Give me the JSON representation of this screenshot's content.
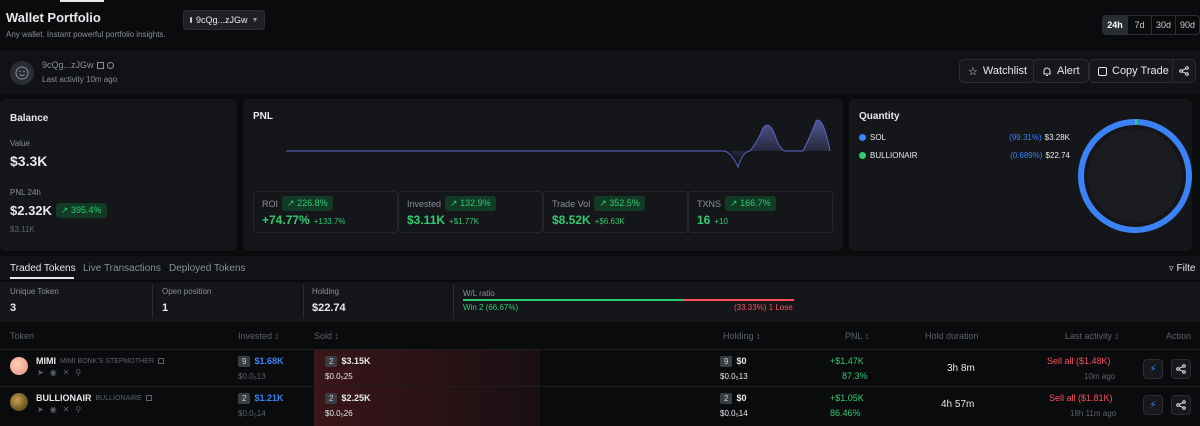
{
  "header": {
    "title": "Wallet Portfolio",
    "subtitle": "Any wallet. Instant powerful portfolio insights.",
    "wallet_select": "9cQg...zJGw",
    "timeframes": [
      "24h",
      "7d",
      "30d",
      "90d"
    ],
    "active_timeframe": "24h"
  },
  "profile": {
    "address": "9cQg...zJGw",
    "last_activity": "Last activity 10m ago",
    "buttons": {
      "watchlist": "Watchlist",
      "alert": "Alert",
      "copy_trade": "Copy Trade"
    }
  },
  "balance": {
    "title": "Balance",
    "value_label": "Value",
    "value": "$3.3K",
    "pnl_label": "PNL 24h",
    "pnl_value": "$2.32K",
    "pnl_pct": "395.4%",
    "pnl_sub": "$3.11K"
  },
  "pnl": {
    "title": "PNL",
    "metrics": [
      {
        "label": "ROI",
        "badge": "226.8%",
        "value": "+74.77%",
        "sub": "+133.7%"
      },
      {
        "label": "Invested",
        "badge": "132.9%",
        "value": "$3.11K",
        "sub": "+$1.77K"
      },
      {
        "label": "Trade Vol",
        "badge": "352.5%",
        "value": "$8.52K",
        "sub": "+$6.63K"
      },
      {
        "label": "TXNS",
        "badge": "166.7%",
        "value": "16",
        "sub": "+10"
      }
    ]
  },
  "quantity": {
    "title": "Quantity",
    "items": [
      {
        "name": "SOL",
        "pct": "(99.31%)",
        "value": "$3.28K",
        "color": "#3b82f6"
      },
      {
        "name": "BULLIONAIR",
        "pct": "(0.689%)",
        "value": "$22.74",
        "color": "#2ecc71"
      }
    ],
    "donut_fractions": [
      0.9931,
      0.00689
    ]
  },
  "tabs": {
    "items": [
      "Traded Tokens",
      "Live Transactions",
      "Deployed Tokens"
    ],
    "filter": "Filte"
  },
  "summary": {
    "unique_label": "Unique Token",
    "unique_value": "3",
    "open_label": "Open position",
    "open_value": "1",
    "holding_label": "Holding",
    "holding_value": "$22.74",
    "wl_label": "W/L ratio",
    "win": "Win 2 (66.67%)",
    "lose": "(33.33%) 1 Lose",
    "win_fraction": 0.6667
  },
  "table": {
    "headers": {
      "token": "Token",
      "invested": "Invested",
      "sold": "Sold",
      "holding": "Holding",
      "pnl": "PNL",
      "hold_duration": "Hold duration",
      "last_activity": "Last activity",
      "action": "Action"
    },
    "rows": [
      {
        "symbol": "MIMI",
        "name": "MIMI BONK'S STEPMOTHER",
        "inv_count": "9",
        "invested": "$1.68K",
        "inv_price": "$0.0₅13",
        "sold_count": "2",
        "sold": "$3.15K",
        "sold_price": "$0.0₅25",
        "hold_count": "9",
        "holding": "$0",
        "hold_price": "$0.0₅13",
        "pnl": "+$1.47K",
        "pnl_pct": "87.3%",
        "duration": "3h 8m",
        "last": "Sell all ($1.48K)",
        "last_time": "10m ago"
      },
      {
        "symbol": "BULLIONAIR",
        "name": "BULLIONAIRE",
        "inv_count": "2",
        "invested": "$1.21K",
        "inv_price": "$0.0₅14",
        "sold_count": "2",
        "sold": "$2.25K",
        "sold_price": "$0.0₅26",
        "hold_count": "2",
        "holding": "$0",
        "hold_price": "$0.0₅14",
        "pnl": "+$1.05K",
        "pnl_pct": "86.46%",
        "duration": "4h 57m",
        "last": "Sell all ($1.81K)",
        "last_time": "18h 11m ago"
      }
    ]
  }
}
